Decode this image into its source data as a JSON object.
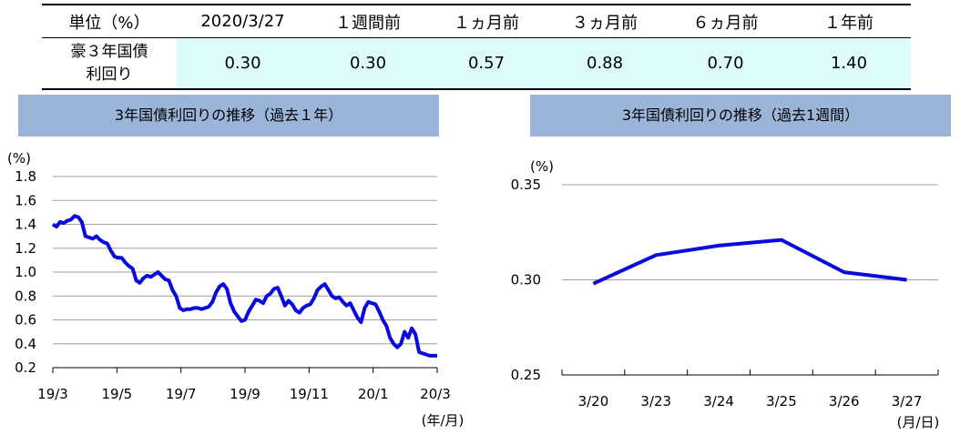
{
  "table": {
    "headers": [
      "単位（%）",
      "2020/3/27",
      "１週間前",
      "１ヵ月前",
      "３ヵ月前",
      "６ヵ月前",
      "１年前"
    ],
    "row_label_line1": "豪３年国債",
    "row_label_line2": "利回り",
    "values": [
      "0.30",
      "0.30",
      "0.57",
      "0.88",
      "0.70",
      "1.40"
    ]
  },
  "chart_data": [
    {
      "type": "line",
      "title": "3年国債利回りの推移（過去１年）",
      "ylabel": "(%)",
      "xlabel": "(年/月)",
      "ylim": [
        0.2,
        1.8
      ],
      "yticks": [
        "1.8",
        "1.6",
        "1.4",
        "1.2",
        "1.0",
        "0.8",
        "0.6",
        "0.4",
        "0.2"
      ],
      "xticks": [
        "19/3",
        "19/5",
        "19/7",
        "19/9",
        "19/11",
        "20/1",
        "20/3"
      ],
      "grid": true,
      "color": "#0a0adc",
      "x": [
        0,
        0.5,
        1,
        1.5,
        2,
        2.5,
        3,
        3.5,
        4,
        4.5,
        5,
        5.5,
        6,
        6.5,
        7,
        7.5,
        8,
        8.5,
        9,
        9.5,
        10,
        10.5,
        11,
        11.5,
        12,
        12.5,
        13,
        13.5,
        14,
        14.5,
        15,
        15.5,
        16,
        16.5,
        17,
        17.5,
        18,
        18.5,
        19,
        19.5,
        20,
        20.5,
        21,
        21.5,
        22,
        22.5,
        23,
        23.5,
        24,
        24.5,
        25,
        25.5,
        26,
        26.5,
        27,
        27.5,
        28,
        28.5,
        29,
        29.5,
        30,
        30.5,
        31,
        31.5,
        32,
        32.5,
        33,
        33.5,
        34,
        34.5,
        35,
        35.5,
        36,
        36.5,
        37,
        37.5,
        38,
        38.5,
        39,
        39.5,
        40,
        40.5,
        41,
        41.5,
        42,
        42.5,
        43,
        43.5,
        44,
        44.5,
        45,
        45.5,
        46,
        46.5,
        47,
        47.5,
        48,
        48.5,
        49,
        49.5,
        50,
        50.5,
        51,
        51.5,
        52,
        52.5,
        53
      ],
      "y": [
        1.4,
        1.38,
        1.42,
        1.41,
        1.43,
        1.44,
        1.47,
        1.46,
        1.42,
        1.3,
        1.29,
        1.28,
        1.3,
        1.27,
        1.25,
        1.24,
        1.18,
        1.13,
        1.12,
        1.12,
        1.08,
        1.05,
        1.03,
        0.93,
        0.91,
        0.95,
        0.97,
        0.96,
        0.98,
        1.0,
        0.97,
        0.94,
        0.93,
        0.85,
        0.8,
        0.7,
        0.68,
        0.69,
        0.69,
        0.7,
        0.7,
        0.69,
        0.7,
        0.71,
        0.75,
        0.83,
        0.88,
        0.9,
        0.86,
        0.74,
        0.67,
        0.63,
        0.59,
        0.6,
        0.67,
        0.72,
        0.77,
        0.76,
        0.74,
        0.8,
        0.82,
        0.86,
        0.87,
        0.8,
        0.72,
        0.76,
        0.73,
        0.68,
        0.66,
        0.7,
        0.72,
        0.73,
        0.78,
        0.85,
        0.88,
        0.9,
        0.85,
        0.8,
        0.78,
        0.79,
        0.75,
        0.72,
        0.74,
        0.68,
        0.62,
        0.58,
        0.7,
        0.75,
        0.74,
        0.73,
        0.67,
        0.6,
        0.55,
        0.45,
        0.4,
        0.37,
        0.4,
        0.5,
        0.45,
        0.53,
        0.48,
        0.33,
        0.32,
        0.31,
        0.3,
        0.3,
        0.3
      ]
    },
    {
      "type": "line",
      "title": "3年国債利回りの推移（過去1週間）",
      "ylabel": "(%)",
      "xlabel": "(月/日)",
      "ylim": [
        0.25,
        0.35
      ],
      "yticks": [
        "0.35",
        "0.30",
        "0.25"
      ],
      "categories": [
        "3/20",
        "3/23",
        "3/24",
        "3/25",
        "3/26",
        "3/27"
      ],
      "values": [
        0.298,
        0.313,
        0.318,
        0.321,
        0.304,
        0.3
      ],
      "grid": true,
      "color": "#0a0adc"
    }
  ]
}
